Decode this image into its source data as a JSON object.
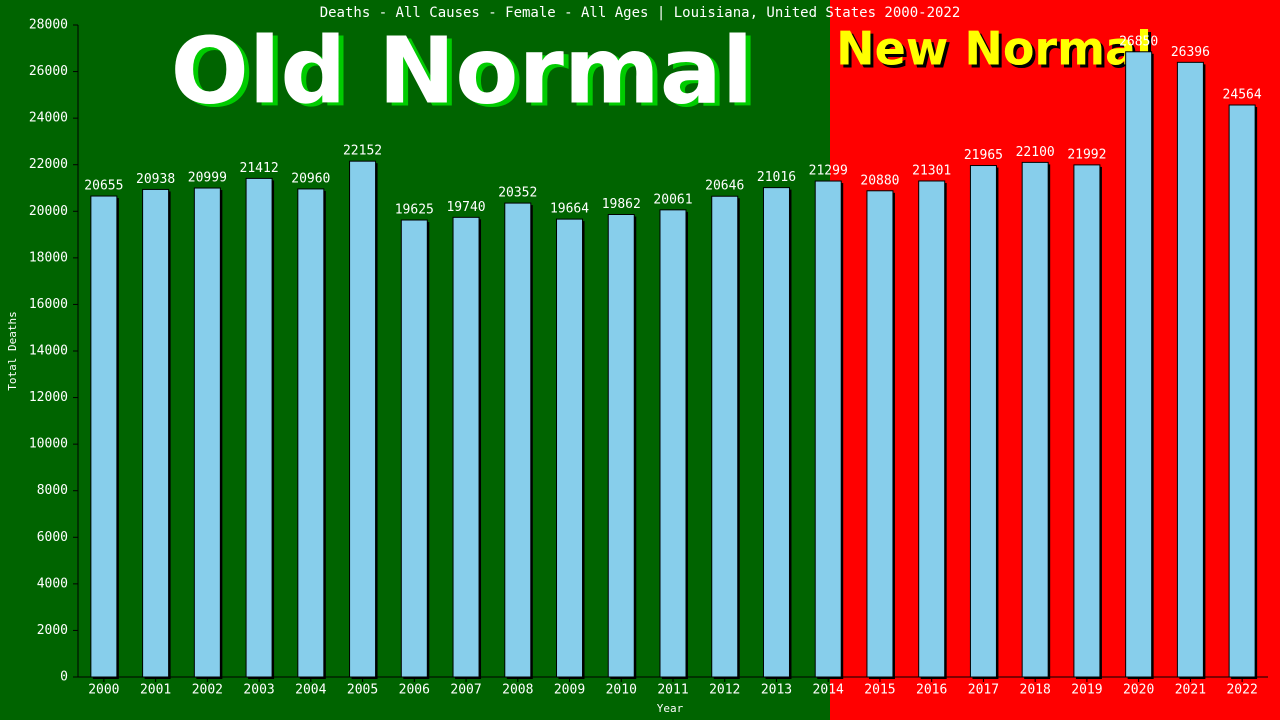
{
  "chart_data": {
    "type": "bar",
    "title": "Deaths - All Causes - Female - All Ages | Louisiana, United States 2000-2022",
    "x_label": "Year",
    "y_label": "Total Deaths",
    "annotations": [
      "Old Normal",
      "New Normal"
    ],
    "categories": [
      "2000",
      "2001",
      "2002",
      "2003",
      "2004",
      "2005",
      "2006",
      "2007",
      "2008",
      "2009",
      "2010",
      "2011",
      "2012",
      "2013",
      "2014",
      "2015",
      "2016",
      "2017",
      "2018",
      "2019",
      "2020",
      "2021",
      "2022"
    ],
    "values": [
      20655,
      20938,
      20999,
      21412,
      20960,
      22152,
      19625,
      19740,
      20352,
      19664,
      19862,
      20061,
      20646,
      21016,
      21299,
      20880,
      21301,
      21965,
      22100,
      21992,
      26850,
      26396,
      24564
    ],
    "color": "#87ceeb",
    "ylim": [
      0,
      28000
    ],
    "yticks": [
      0,
      2000,
      4000,
      6000,
      8000,
      10000,
      12000,
      14000,
      16000,
      18000,
      20000,
      22000,
      24000,
      26000,
      28000
    ]
  }
}
